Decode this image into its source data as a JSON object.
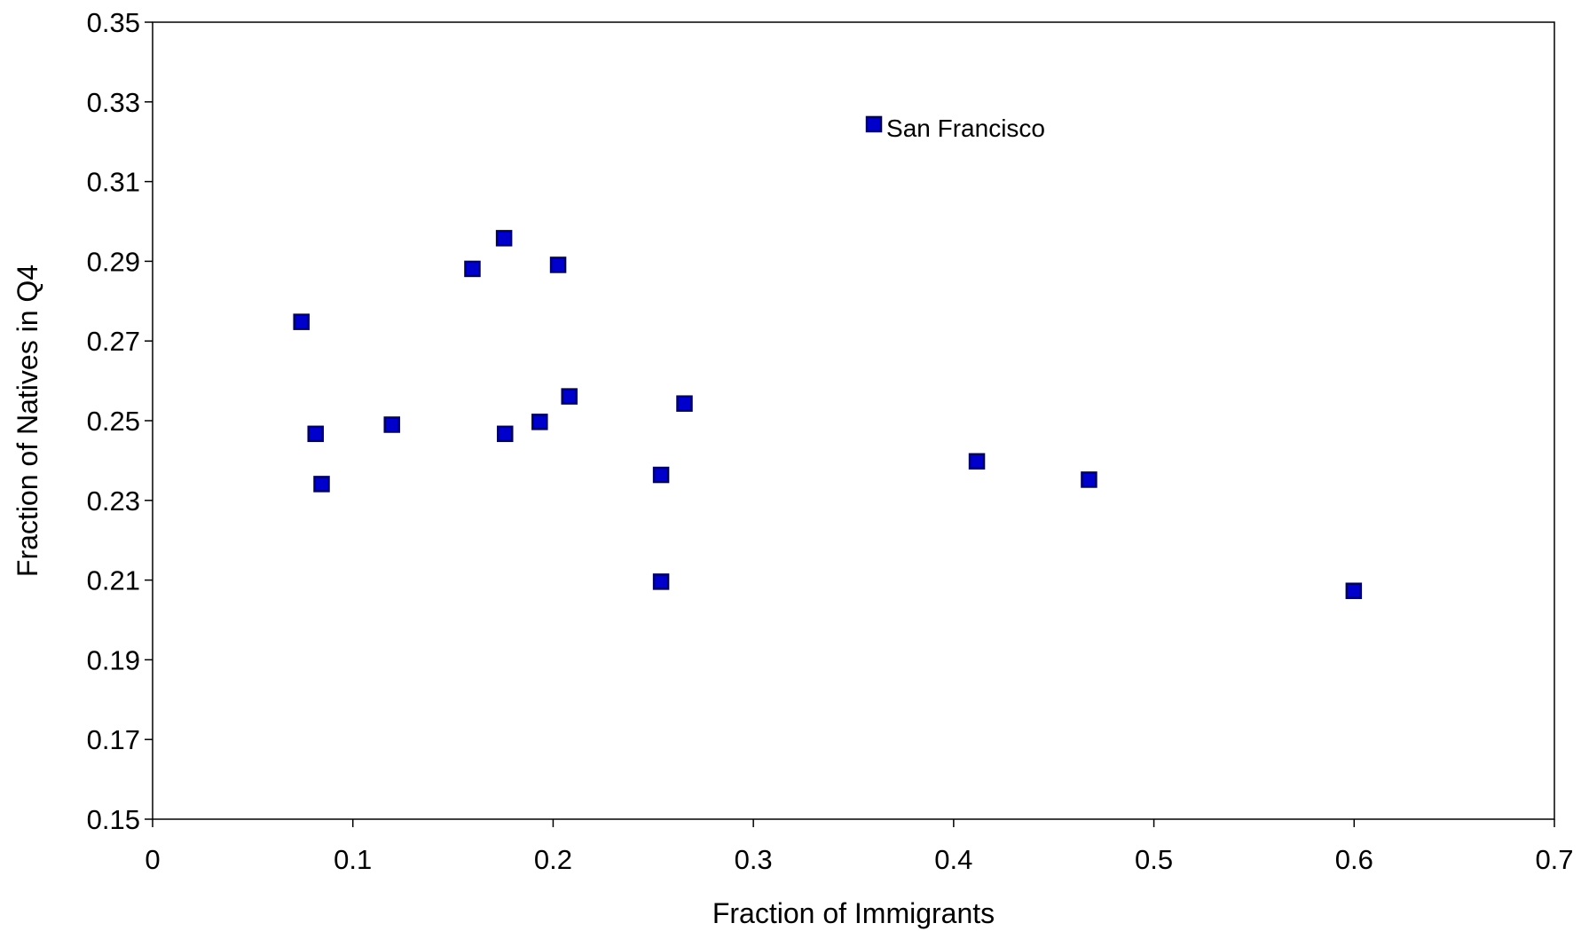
{
  "chart_data": {
    "type": "scatter",
    "x_label": "Fraction of Immigrants",
    "y_label": "Fraction of Natives in Q4",
    "xlim": [
      0,
      0.7
    ],
    "ylim": [
      0.15,
      0.35
    ],
    "xticks": [
      0,
      0.1,
      0.2,
      0.3,
      0.4,
      0.5,
      0.6,
      0.7
    ],
    "yticks": [
      0.15,
      0.17,
      0.19,
      0.21,
      0.23,
      0.25,
      0.27,
      0.29,
      0.31,
      0.33,
      0.35
    ],
    "grid": false,
    "color": "#0000cc",
    "x": [
      0.0743,
      0.0814,
      0.0844,
      0.1195,
      0.1597,
      0.1755,
      0.176,
      0.1933,
      0.2025,
      0.2081,
      0.2539,
      0.2539,
      0.2656,
      0.3602,
      0.4116,
      0.4676,
      0.5998
    ],
    "y": [
      0.2748,
      0.2467,
      0.2341,
      0.249,
      0.2881,
      0.2958,
      0.2467,
      0.2497,
      0.2891,
      0.2561,
      0.2364,
      0.2096,
      0.2543,
      0.3244,
      0.2398,
      0.2352,
      0.2073
    ],
    "annotations": [
      {
        "text": "San Francisco",
        "x": 0.3602,
        "y": 0.3244
      }
    ]
  }
}
